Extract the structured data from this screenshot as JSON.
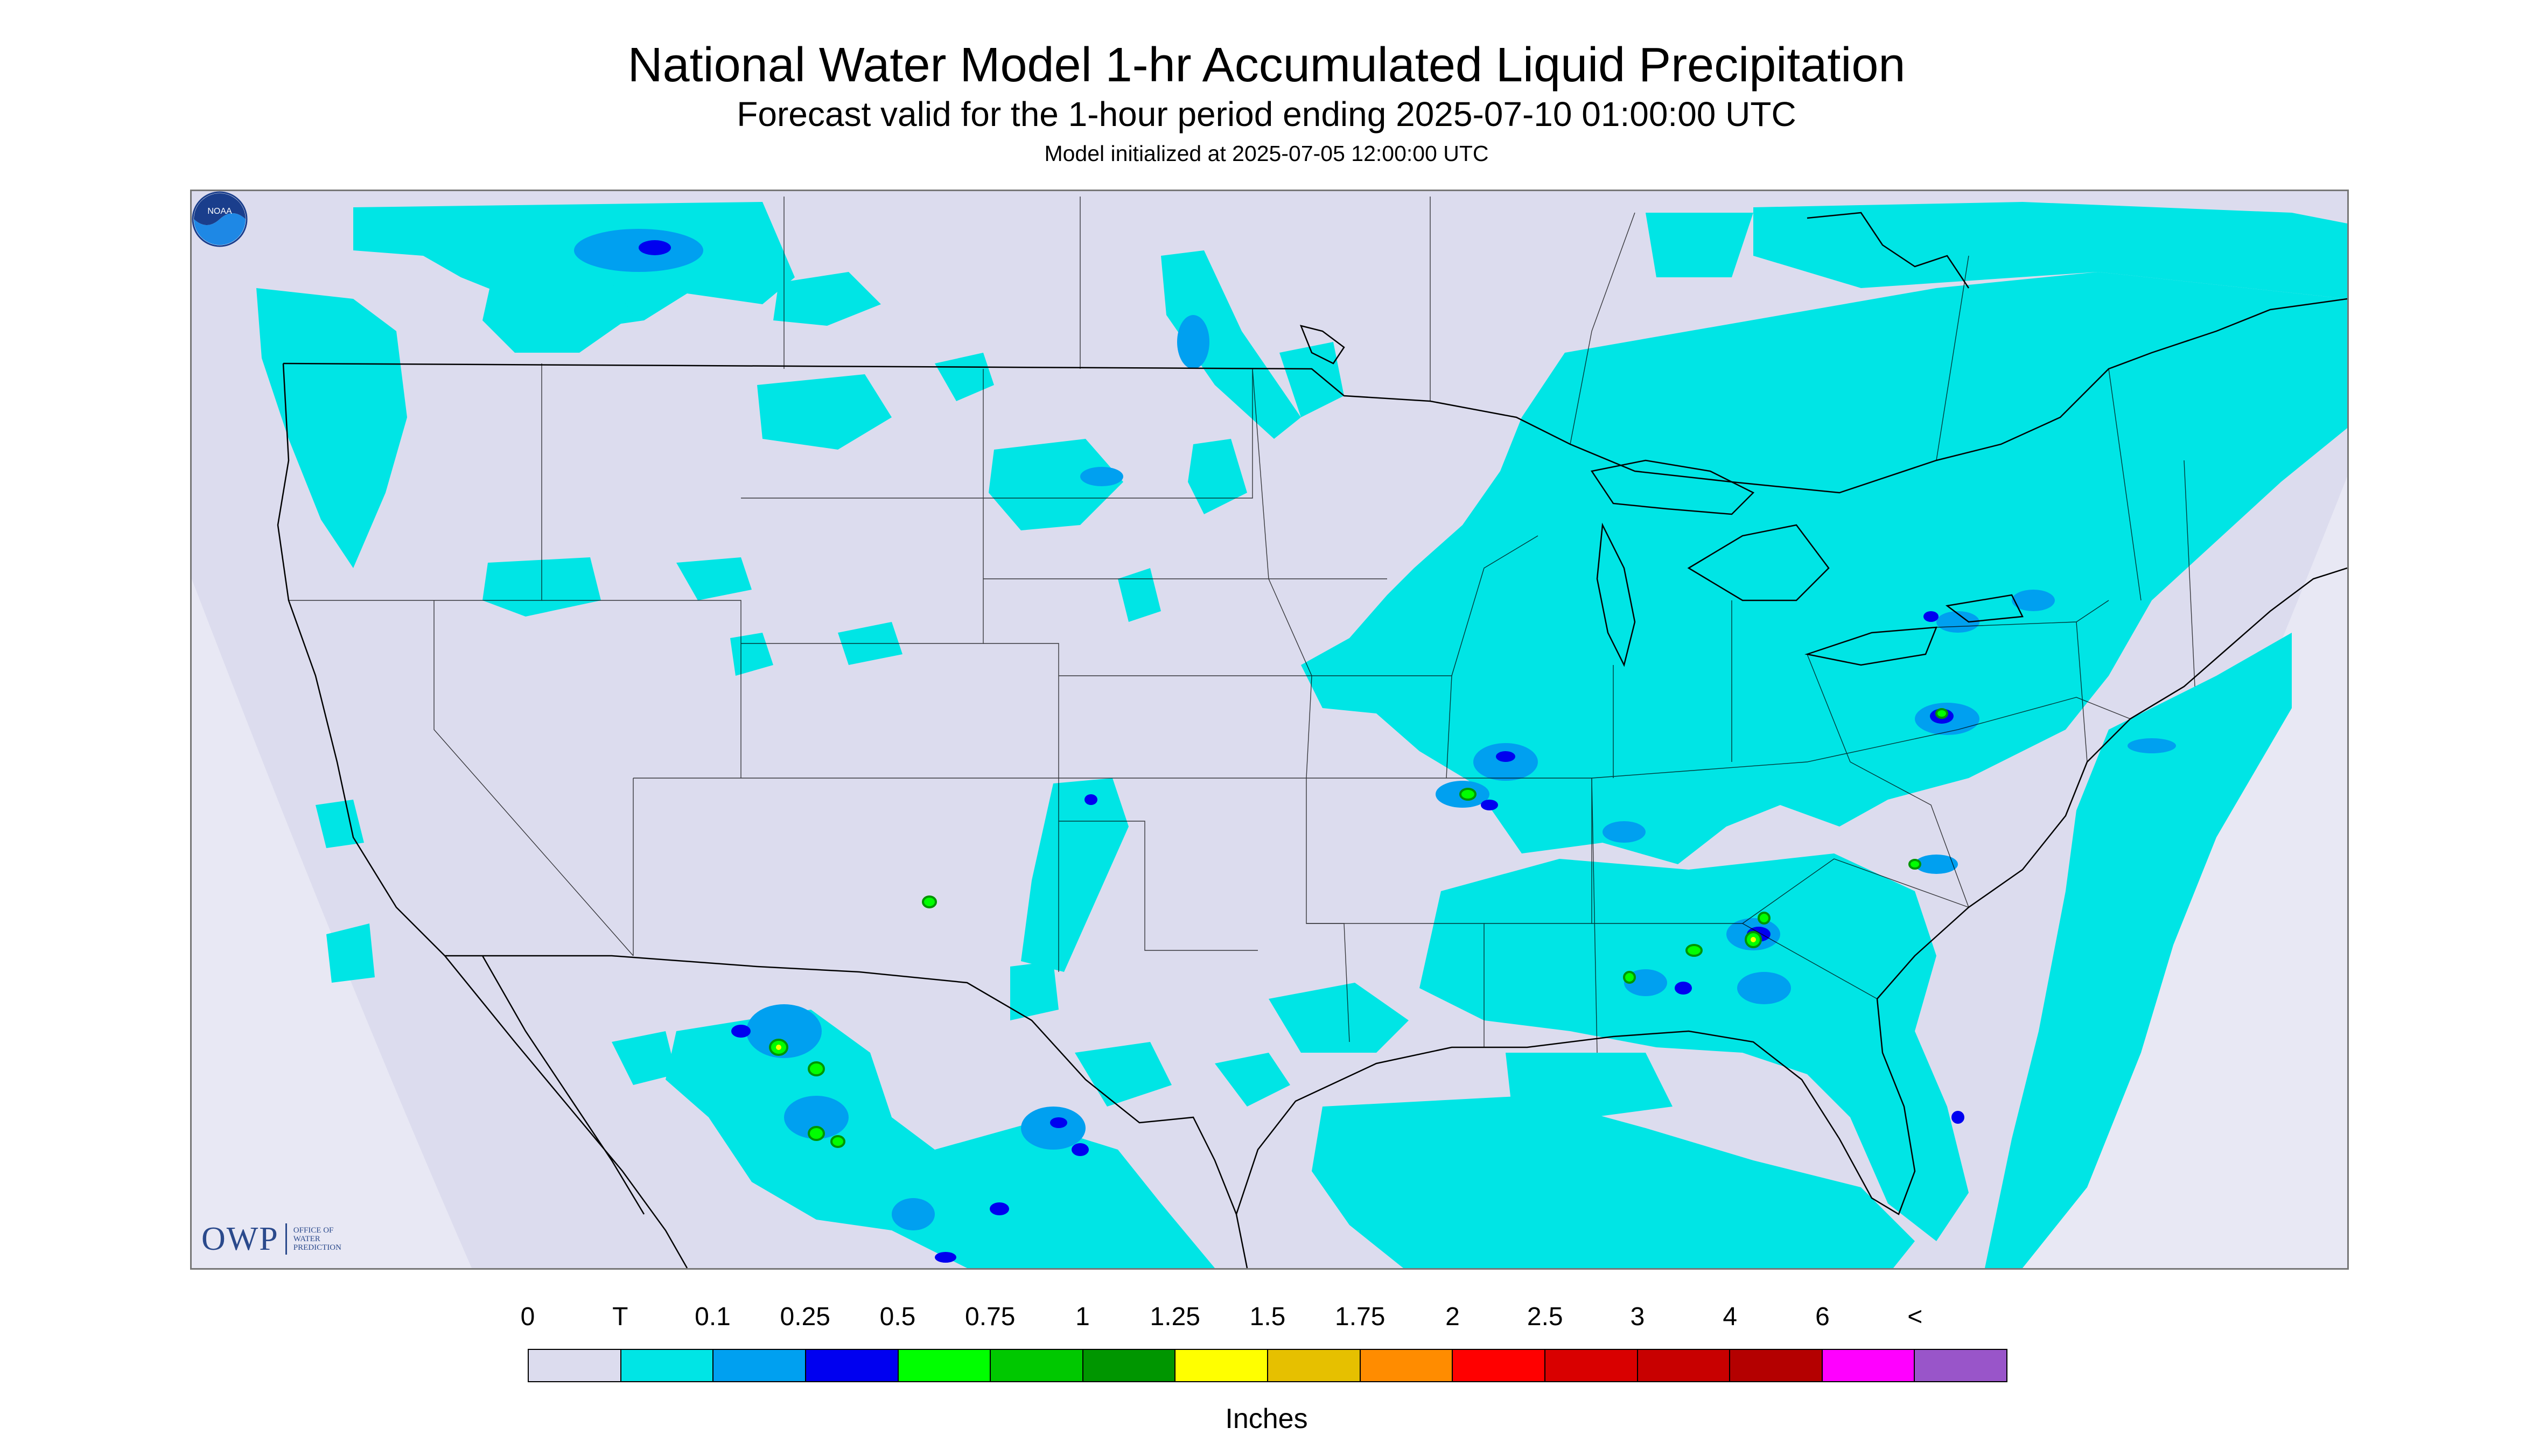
{
  "header": {
    "title": "National Water Model 1-hr Accumulated Liquid Precipitation",
    "subtitle": "Forecast valid for the 1-hour period ending 2025-07-10 01:00:00 UTC",
    "init": "Model initialized at 2025-07-05 12:00:00 UTC"
  },
  "logos": {
    "owp_mark": "OWP",
    "owp_text_1": "OFFICE OF",
    "owp_text_2": "WATER",
    "owp_text_3": "PREDICTION",
    "noaa_mark": "NOAA"
  },
  "legend": {
    "labels": [
      "0",
      "T",
      "0.1",
      "0.25",
      "0.5",
      "0.75",
      "1",
      "1.25",
      "1.5",
      "1.75",
      "2",
      "2.5",
      "3",
      "4",
      "6",
      "<"
    ],
    "colors": [
      "#dcdcee",
      "#00e5e5",
      "#00a0f0",
      "#0000f0",
      "#00ff00",
      "#00c800",
      "#009600",
      "#ffff00",
      "#e6c000",
      "#ff8c00",
      "#ff0000",
      "#d90000",
      "#c80000",
      "#b40000",
      "#ff00ff",
      "#9955c9"
    ],
    "units": "Inches"
  },
  "colors": {
    "map_background": "#dcdcee",
    "trace": "#00e5e5",
    "light": "#00a0f0",
    "medium": "#0000f0",
    "moderate": "#00ff00",
    "heavy": "#009600",
    "very_heavy": "#ffff00",
    "border_lines": "#000000"
  }
}
